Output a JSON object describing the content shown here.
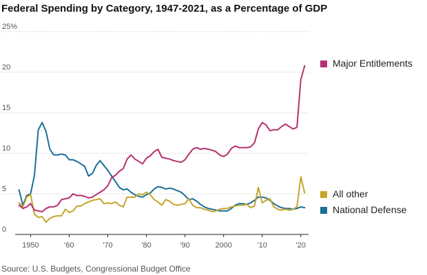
{
  "chart_data": {
    "type": "line",
    "title": "Federal Spending by Category, 1947-2021, as a Percentage of GDP",
    "source": "Source: U.S. Budgets, Congressional Budget Office",
    "xlabel": "",
    "ylabel": "",
    "xlim": [
      1946,
      2022
    ],
    "ylim": [
      0,
      25
    ],
    "x_ticks": [
      1950,
      1960,
      1970,
      1980,
      1990,
      2000,
      2010,
      2020
    ],
    "x_tick_labels": [
      "1950",
      "'60",
      "'70",
      "'80",
      "'90",
      "2000",
      "'10",
      "'20"
    ],
    "y_ticks": [
      0,
      5,
      10,
      15,
      20,
      25
    ],
    "y_tick_labels": [
      "0",
      "5",
      "10",
      "15",
      "20",
      "25%"
    ],
    "grid": "horizontal dotted",
    "legend_placement": "right, beside line ends",
    "x": [
      1947,
      1948,
      1949,
      1950,
      1951,
      1952,
      1953,
      1954,
      1955,
      1956,
      1957,
      1958,
      1959,
      1960,
      1961,
      1962,
      1963,
      1964,
      1965,
      1966,
      1967,
      1968,
      1969,
      1970,
      1971,
      1972,
      1973,
      1974,
      1975,
      1976,
      1977,
      1978,
      1979,
      1980,
      1981,
      1982,
      1983,
      1984,
      1985,
      1986,
      1987,
      1988,
      1989,
      1990,
      1991,
      1992,
      1993,
      1994,
      1995,
      1996,
      1997,
      1998,
      1999,
      2000,
      2001,
      2002,
      2003,
      2004,
      2005,
      2006,
      2007,
      2008,
      2009,
      2010,
      2011,
      2012,
      2013,
      2014,
      2015,
      2016,
      2017,
      2018,
      2019,
      2020,
      2021
    ],
    "series": [
      {
        "name": "Major Entitlements",
        "color": "#b5306f",
        "values": [
          3.6,
          3.2,
          3.4,
          3.8,
          3.0,
          2.9,
          2.8,
          3.2,
          3.4,
          3.4,
          3.6,
          4.3,
          4.4,
          4.5,
          5.0,
          4.8,
          4.8,
          4.7,
          4.5,
          4.6,
          4.9,
          5.2,
          5.5,
          6.0,
          7.0,
          7.3,
          7.8,
          8.1,
          9.3,
          9.8,
          9.3,
          9.0,
          8.7,
          9.4,
          9.7,
          10.2,
          10.5,
          9.5,
          9.4,
          9.3,
          9.1,
          9.0,
          8.9,
          9.2,
          9.9,
          10.5,
          10.7,
          10.5,
          10.6,
          10.5,
          10.4,
          10.2,
          9.8,
          9.6,
          9.9,
          10.6,
          10.9,
          10.7,
          10.7,
          10.7,
          10.8,
          11.3,
          13.0,
          13.8,
          13.5,
          12.8,
          12.9,
          12.9,
          13.3,
          13.6,
          13.3,
          13.0,
          13.2,
          19.1,
          20.8
        ]
      },
      {
        "name": "All other",
        "color": "#c4a52c",
        "values": [
          3.9,
          3.4,
          4.6,
          4.9,
          2.5,
          2.1,
          2.2,
          1.5,
          2.0,
          2.2,
          2.3,
          2.3,
          3.1,
          2.7,
          2.9,
          3.5,
          3.5,
          3.8,
          4.0,
          4.2,
          4.3,
          4.4,
          3.8,
          3.9,
          3.8,
          4.0,
          3.6,
          3.4,
          4.6,
          4.6,
          4.6,
          5.0,
          4.9,
          5.2,
          4.9,
          4.3,
          4.0,
          3.6,
          4.3,
          4.1,
          3.7,
          3.6,
          3.7,
          3.8,
          4.4,
          3.6,
          3.3,
          3.3,
          3.1,
          3.0,
          2.8,
          2.9,
          3.1,
          3.2,
          3.2,
          3.4,
          3.5,
          3.6,
          3.6,
          3.7,
          3.3,
          3.5,
          5.8,
          3.9,
          4.2,
          4.4,
          3.4,
          3.1,
          3.0,
          3.1,
          3.0,
          3.1,
          3.4,
          7.1,
          5.1
        ]
      },
      {
        "name": "National Defense",
        "color": "#1a6e96",
        "values": [
          5.5,
          3.6,
          4.8,
          5.0,
          7.3,
          12.9,
          13.8,
          12.7,
          10.5,
          9.8,
          9.8,
          9.9,
          9.8,
          9.2,
          9.2,
          9.0,
          8.7,
          8.4,
          7.2,
          7.5,
          8.5,
          9.1,
          8.5,
          7.9,
          7.2,
          6.5,
          5.8,
          5.5,
          5.6,
          5.2,
          4.9,
          4.7,
          4.6,
          4.9,
          5.1,
          5.6,
          5.9,
          5.8,
          5.6,
          5.7,
          5.6,
          5.4,
          5.2,
          4.8,
          4.3,
          4.4,
          4.1,
          3.7,
          3.4,
          3.2,
          3.1,
          3.0,
          2.9,
          2.9,
          2.9,
          3.2,
          3.6,
          3.8,
          3.8,
          3.7,
          3.9,
          4.2,
          4.6,
          4.6,
          4.5,
          4.2,
          3.8,
          3.5,
          3.3,
          3.2,
          3.2,
          3.1,
          3.2,
          3.4,
          3.3
        ]
      }
    ]
  }
}
